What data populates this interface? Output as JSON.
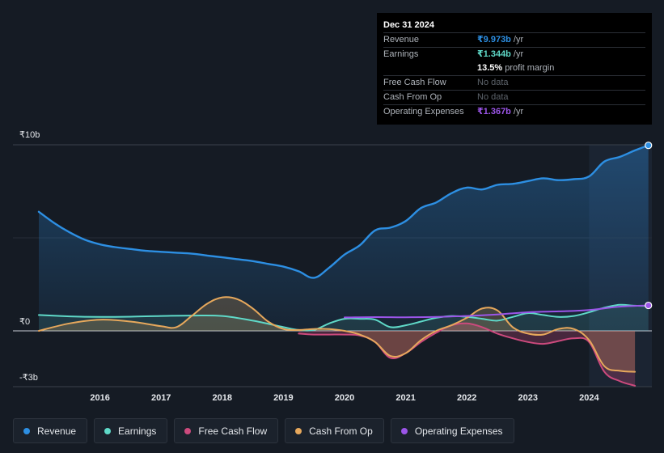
{
  "colors": {
    "revenue": "#2d8fe3",
    "earnings": "#5fd9c8",
    "free_cash_flow": "#cc4a7d",
    "cash_from_op": "#e6a85c",
    "operating_expenses": "#9b55e8",
    "background": "#151b24"
  },
  "tooltip": {
    "date": "Dec 31 2024",
    "rows": {
      "revenue": {
        "label": "Revenue",
        "value": "₹9.973b",
        "unit": "/yr"
      },
      "earnings": {
        "label": "Earnings",
        "value": "₹1.344b",
        "unit": "/yr"
      },
      "margin": {
        "value": "13.5%",
        "unit": "profit margin"
      },
      "fcf": {
        "label": "Free Cash Flow",
        "value": "No data"
      },
      "cfo": {
        "label": "Cash From Op",
        "value": "No data"
      },
      "opex": {
        "label": "Operating Expenses",
        "value": "₹1.367b",
        "unit": "/yr"
      }
    }
  },
  "legend": [
    {
      "key": "revenue",
      "label": "Revenue",
      "color": "#2d8fe3"
    },
    {
      "key": "earnings",
      "label": "Earnings",
      "color": "#5fd9c8"
    },
    {
      "key": "free_cash_flow",
      "label": "Free Cash Flow",
      "color": "#cc4a7d"
    },
    {
      "key": "cash_from_op",
      "label": "Cash From Op",
      "color": "#e6a85c"
    },
    {
      "key": "operating_expenses",
      "label": "Operating Expenses",
      "color": "#9b55e8"
    }
  ],
  "chart_data": {
    "type": "area",
    "title": "",
    "xlabel": "",
    "ylabel": "",
    "currency": "₹",
    "xlim": [
      2015.0,
      2025.0
    ],
    "ylim": [
      -3.0,
      10.0
    ],
    "y_ticks": [
      {
        "value": 10,
        "label": "₹10b"
      },
      {
        "value": 0,
        "label": "₹0"
      },
      {
        "value": -3,
        "label": "-₹3b"
      }
    ],
    "x_ticks": [
      {
        "value": 2016,
        "label": "2016"
      },
      {
        "value": 2017,
        "label": "2017"
      },
      {
        "value": 2018,
        "label": "2018"
      },
      {
        "value": 2019,
        "label": "2019"
      },
      {
        "value": 2020,
        "label": "2020"
      },
      {
        "value": 2021,
        "label": "2021"
      },
      {
        "value": 2022,
        "label": "2022"
      },
      {
        "value": 2023,
        "label": "2023"
      },
      {
        "value": 2024,
        "label": "2024"
      }
    ],
    "highlight_start": 2024.0,
    "series": [
      {
        "key": "revenue",
        "name": "Revenue",
        "color": "#2d8fe3",
        "fill": true,
        "x": [
          2015.0,
          2015.25,
          2015.5,
          2015.75,
          2016.0,
          2016.25,
          2016.5,
          2016.75,
          2017.0,
          2017.25,
          2017.5,
          2017.75,
          2018.0,
          2018.25,
          2018.5,
          2018.75,
          2019.0,
          2019.25,
          2019.5,
          2019.75,
          2020.0,
          2020.25,
          2020.5,
          2020.75,
          2021.0,
          2021.25,
          2021.5,
          2021.75,
          2022.0,
          2022.25,
          2022.5,
          2022.75,
          2023.0,
          2023.25,
          2023.5,
          2023.75,
          2024.0,
          2024.25,
          2024.5,
          2024.75,
          2024.97
        ],
        "values": [
          6.4,
          5.8,
          5.3,
          4.9,
          4.65,
          4.5,
          4.4,
          4.3,
          4.25,
          4.2,
          4.15,
          4.05,
          3.95,
          3.85,
          3.75,
          3.6,
          3.45,
          3.2,
          2.85,
          3.4,
          4.1,
          4.6,
          5.4,
          5.55,
          5.9,
          6.6,
          6.9,
          7.4,
          7.7,
          7.6,
          7.85,
          7.9,
          8.05,
          8.2,
          8.1,
          8.15,
          8.3,
          9.1,
          9.35,
          9.7,
          9.97
        ]
      },
      {
        "key": "earnings",
        "name": "Earnings",
        "color": "#5fd9c8",
        "fill": true,
        "x": [
          2015.0,
          2015.5,
          2016.0,
          2016.5,
          2017.0,
          2017.5,
          2018.0,
          2018.5,
          2019.0,
          2019.25,
          2019.5,
          2019.75,
          2020.0,
          2020.25,
          2020.5,
          2020.75,
          2021.0,
          2021.25,
          2021.5,
          2021.75,
          2022.0,
          2022.25,
          2022.5,
          2022.75,
          2023.0,
          2023.25,
          2023.5,
          2023.75,
          2024.0,
          2024.25,
          2024.5,
          2024.75,
          2024.97
        ],
        "values": [
          0.85,
          0.78,
          0.75,
          0.76,
          0.8,
          0.82,
          0.8,
          0.55,
          0.2,
          0.05,
          0.05,
          0.4,
          0.65,
          0.65,
          0.6,
          0.2,
          0.3,
          0.5,
          0.7,
          0.8,
          0.75,
          0.65,
          0.55,
          0.75,
          0.95,
          0.85,
          0.75,
          0.8,
          1.0,
          1.25,
          1.4,
          1.35,
          1.34
        ]
      },
      {
        "key": "free_cash_flow",
        "name": "Free Cash Flow",
        "color": "#cc4a7d",
        "fill": true,
        "x": [
          2019.25,
          2019.5,
          2019.75,
          2020.0,
          2020.25,
          2020.5,
          2020.75,
          2021.0,
          2021.25,
          2021.5,
          2021.75,
          2022.0,
          2022.25,
          2022.5,
          2022.75,
          2023.0,
          2023.25,
          2023.5,
          2023.75,
          2024.0,
          2024.25,
          2024.5,
          2024.75
        ],
        "values": [
          -0.15,
          -0.2,
          -0.2,
          -0.2,
          -0.25,
          -0.6,
          -1.45,
          -1.2,
          -0.6,
          -0.1,
          0.3,
          0.4,
          0.2,
          -0.15,
          -0.4,
          -0.6,
          -0.7,
          -0.55,
          -0.4,
          -0.6,
          -2.2,
          -2.7,
          -2.95
        ]
      },
      {
        "key": "cash_from_op",
        "name": "Cash From Op",
        "color": "#e6a85c",
        "fill": true,
        "x": [
          2015.0,
          2015.5,
          2016.0,
          2016.5,
          2017.0,
          2017.25,
          2017.5,
          2017.75,
          2018.0,
          2018.25,
          2018.5,
          2018.75,
          2019.0,
          2019.25,
          2019.5,
          2019.75,
          2020.0,
          2020.25,
          2020.5,
          2020.75,
          2021.0,
          2021.25,
          2021.5,
          2021.75,
          2022.0,
          2022.25,
          2022.5,
          2022.75,
          2023.0,
          2023.25,
          2023.5,
          2023.75,
          2024.0,
          2024.25,
          2024.5,
          2024.75
        ],
        "values": [
          0.0,
          0.4,
          0.6,
          0.5,
          0.25,
          0.2,
          0.8,
          1.45,
          1.8,
          1.7,
          1.2,
          0.5,
          0.1,
          0.05,
          0.1,
          0.1,
          0.0,
          -0.2,
          -0.6,
          -1.35,
          -1.2,
          -0.5,
          0.0,
          0.3,
          0.7,
          1.2,
          1.1,
          0.2,
          -0.15,
          -0.2,
          0.1,
          0.1,
          -0.5,
          -1.9,
          -2.15,
          -2.2
        ]
      },
      {
        "key": "operating_expenses",
        "name": "Operating Expenses",
        "color": "#9b55e8",
        "fill": false,
        "x": [
          2020.0,
          2020.5,
          2021.0,
          2021.5,
          2022.0,
          2022.5,
          2023.0,
          2023.5,
          2024.0,
          2024.5,
          2024.97
        ],
        "values": [
          0.72,
          0.74,
          0.73,
          0.75,
          0.8,
          0.88,
          1.0,
          1.05,
          1.12,
          1.3,
          1.367
        ]
      }
    ]
  }
}
